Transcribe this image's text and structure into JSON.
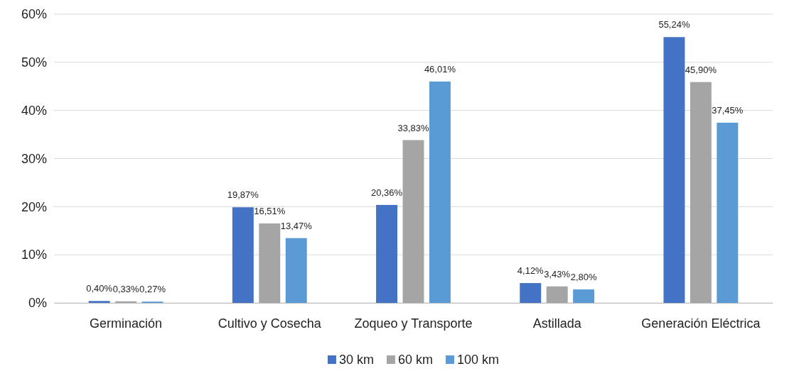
{
  "chart_data": {
    "type": "bar",
    "categories": [
      "Germinación",
      "Cultivo y Cosecha",
      "Zoqueo y Transporte",
      "Astillada",
      "Generación Eléctrica"
    ],
    "series": [
      {
        "name": "30 km",
        "color": "#4472c4",
        "values": [
          0.4,
          19.87,
          20.36,
          4.12,
          55.24
        ],
        "value_labels": [
          "0,40%",
          "19,87%",
          "20,36%",
          "4,12%",
          "55,24%"
        ]
      },
      {
        "name": "60 km",
        "color": "#a5a5a5",
        "values": [
          0.33,
          16.51,
          33.83,
          3.43,
          45.9
        ],
        "value_labels": [
          "0,33%",
          "16,51%",
          "33,83%",
          "3,43%",
          "45,90%"
        ]
      },
      {
        "name": "100 km",
        "color": "#5b9bd5",
        "values": [
          0.27,
          13.47,
          46.01,
          2.8,
          37.45
        ],
        "value_labels": [
          "0,27%",
          "13,47%",
          "46,01%",
          "2,80%",
          "37,45%"
        ]
      }
    ],
    "ylim": [
      0,
      60
    ],
    "yticks": [
      {
        "value": 0,
        "label": "0%"
      },
      {
        "value": 10,
        "label": "10%"
      },
      {
        "value": 20,
        "label": "20%"
      },
      {
        "value": 30,
        "label": "30%"
      },
      {
        "value": 40,
        "label": "40%"
      },
      {
        "value": 50,
        "label": "50%"
      },
      {
        "value": 60,
        "label": "60%"
      }
    ],
    "grid": "y",
    "legend": "bottom"
  }
}
